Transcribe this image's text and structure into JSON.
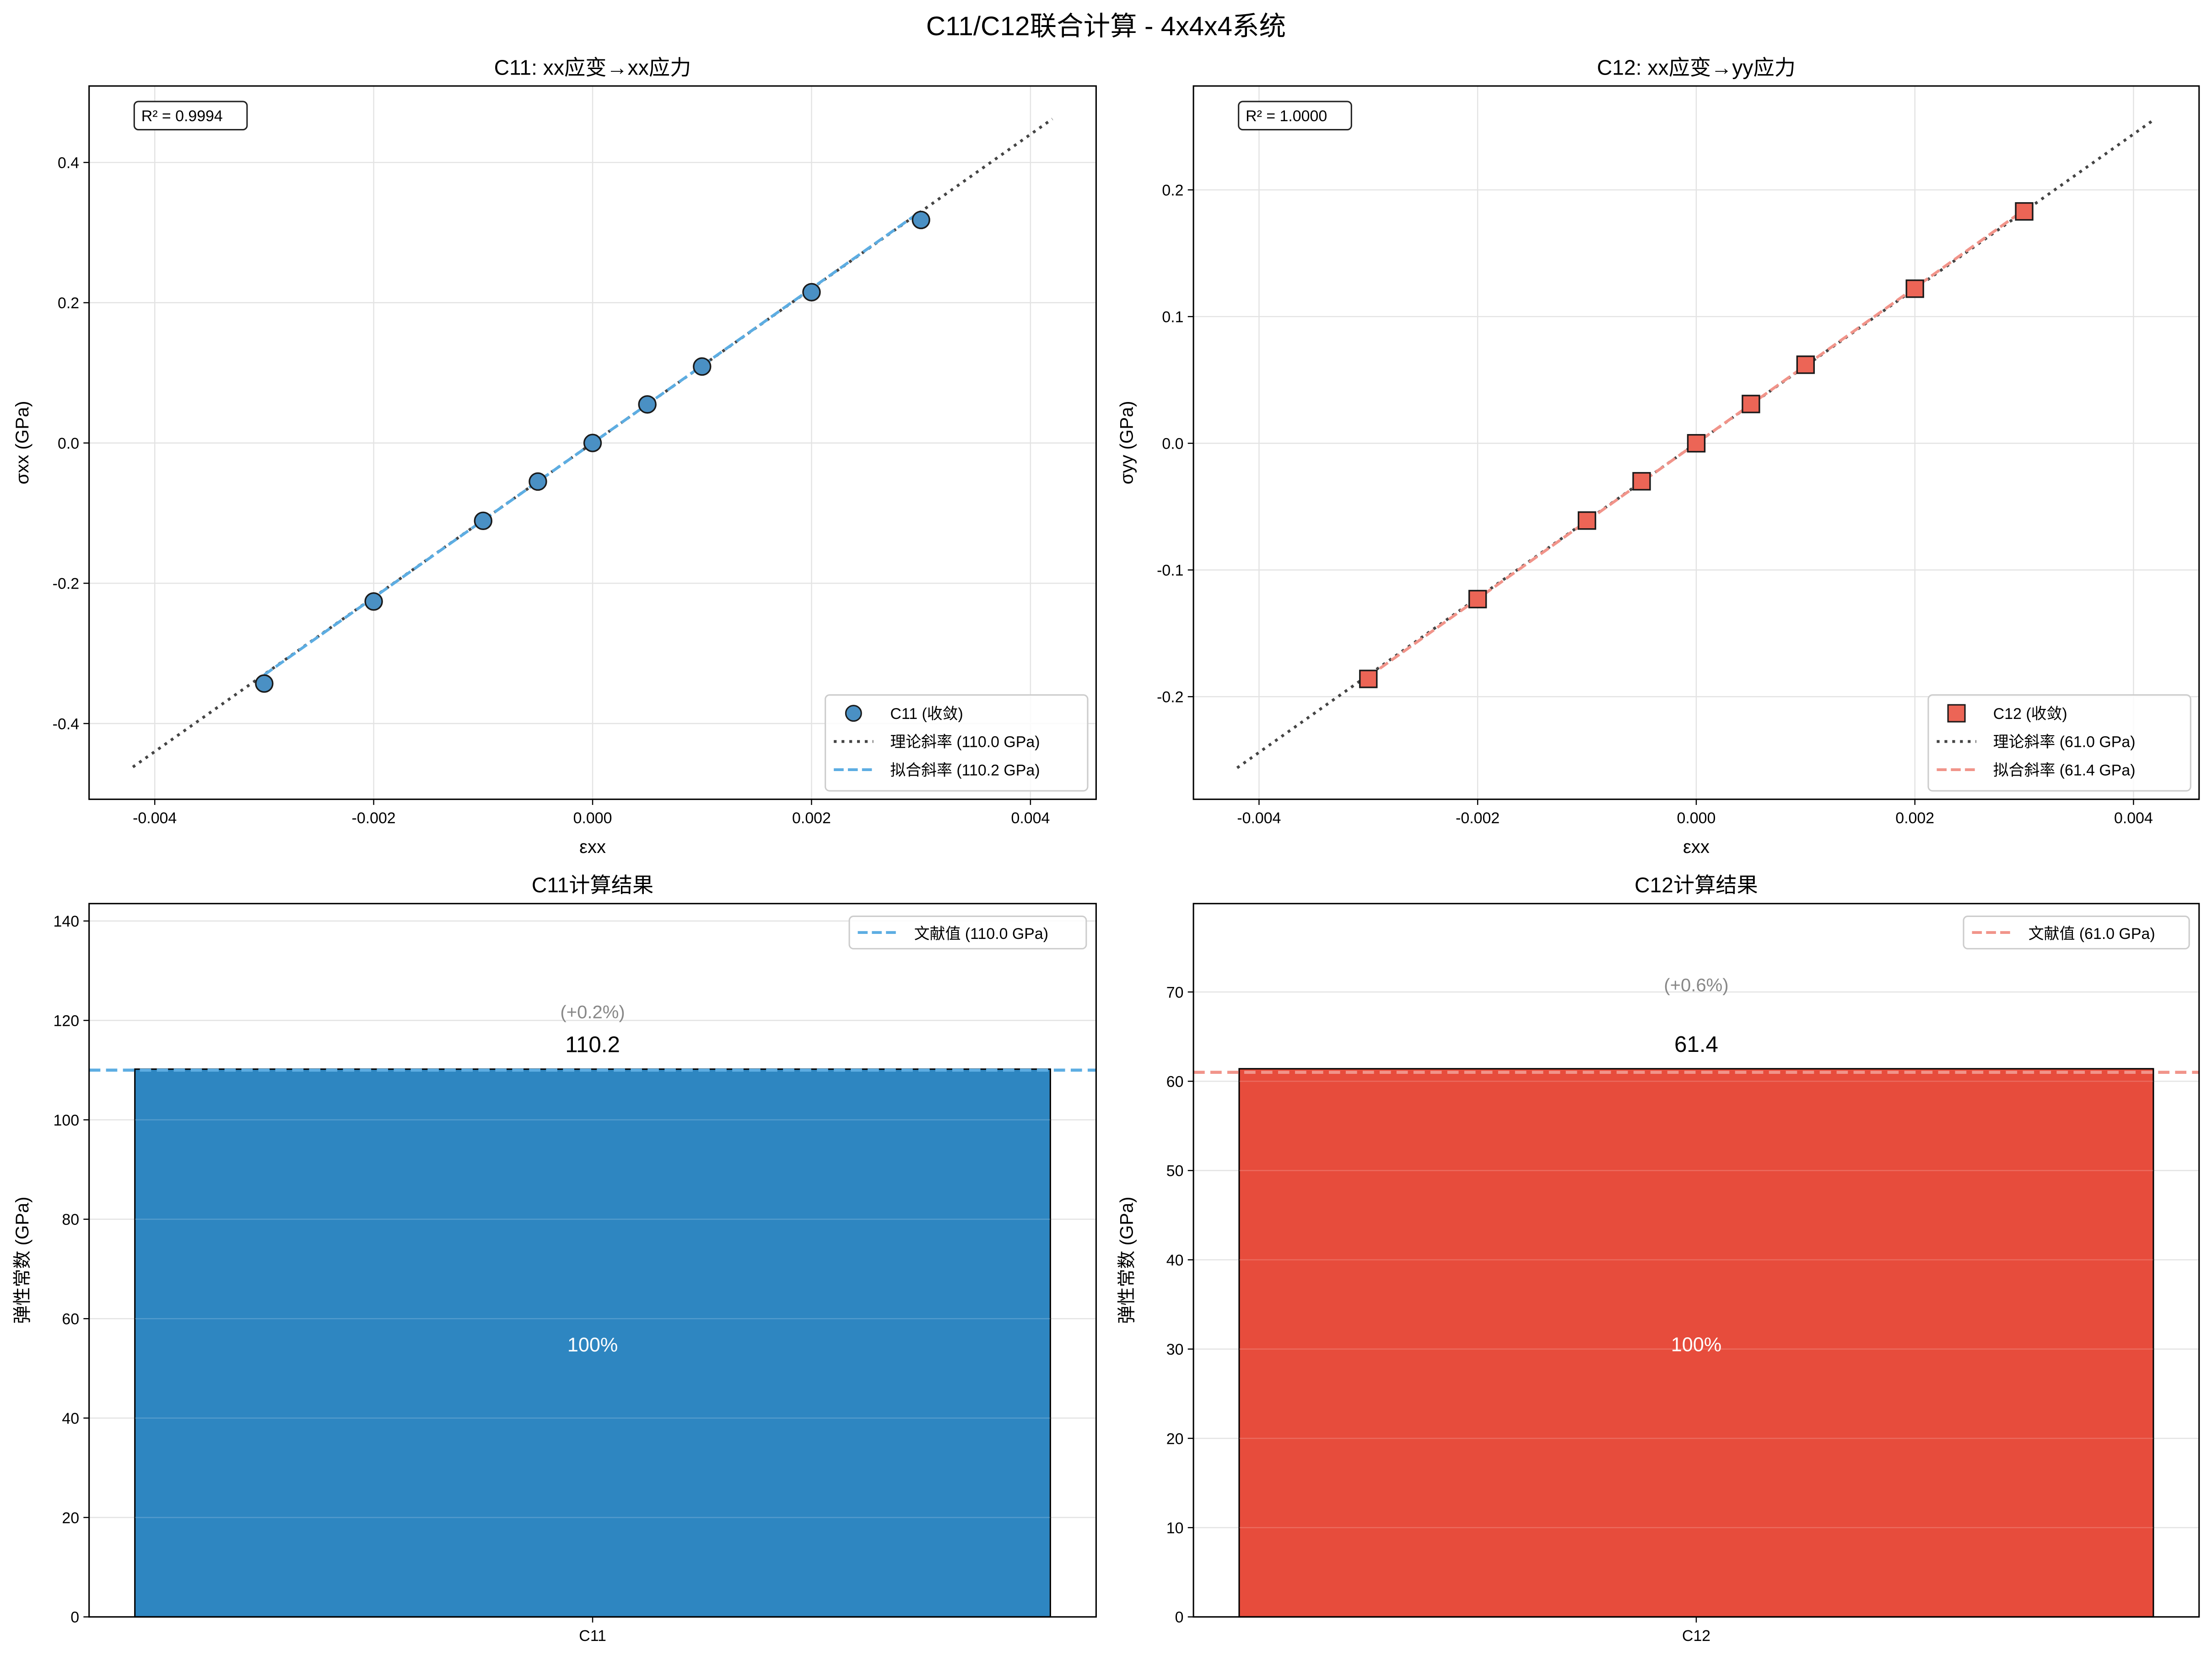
{
  "suptitle": "C11/C12联合计算 - 4x4x4系统",
  "chart_data": [
    {
      "type": "scatter",
      "title": "C11: xx应变→xx应力",
      "xlabel": "εxx",
      "ylabel": "σxx (GPa)",
      "xlim": [
        -0.0046,
        0.0046
      ],
      "ylim": [
        -0.508,
        0.509
      ],
      "xticks": [
        "-0.004",
        "-0.002",
        "0.000",
        "0.002",
        "0.004"
      ],
      "xtick_values": [
        -0.004,
        -0.002,
        0,
        0.002,
        0.004
      ],
      "yticks": [
        "-0.4",
        "-0.2",
        "0.0",
        "0.2",
        "0.4"
      ],
      "ytick_values": [
        -0.4,
        -0.2,
        0,
        0.2,
        0.4
      ],
      "grid": true,
      "annotation": "R² = 0.9994",
      "marker": "circle",
      "color": "#4A90C4",
      "fit_color": "#5DADE2",
      "x": [
        -0.003,
        -0.002,
        -0.001,
        -0.0005,
        0,
        0.0005,
        0.001,
        0.002,
        0.003
      ],
      "y": [
        -0.343,
        -0.226,
        -0.111,
        -0.055,
        0.0,
        0.055,
        0.109,
        0.215,
        0.318
      ],
      "theory_slope_gpa": 110.0,
      "fit_slope_gpa": 110.2,
      "legend_position": "lower right",
      "legend": [
        "C11 (收敛)",
        "理论斜率 (110.0 GPa)",
        "拟合斜率 (110.2 GPa)"
      ]
    },
    {
      "type": "scatter",
      "title": "C12: xx应变→yy应力",
      "xlabel": "εxx",
      "ylabel": "σyy (GPa)",
      "xlim": [
        -0.0046,
        0.0046
      ],
      "ylim": [
        -0.281,
        0.282
      ],
      "xticks": [
        "-0.004",
        "-0.002",
        "0.000",
        "0.002",
        "0.004"
      ],
      "xtick_values": [
        -0.004,
        -0.002,
        0,
        0.002,
        0.004
      ],
      "yticks": [
        "-0.2",
        "-0.1",
        "0.0",
        "0.1",
        "0.2"
      ],
      "ytick_values": [
        -0.2,
        -0.1,
        0,
        0.1,
        0.2
      ],
      "grid": true,
      "annotation": "R² = 1.0000",
      "marker": "square",
      "color": "#EC6556",
      "fit_color": "#F1948A",
      "x": [
        -0.003,
        -0.002,
        -0.001,
        -0.0005,
        0,
        0.0005,
        0.001,
        0.002,
        0.003
      ],
      "y": [
        -0.186,
        -0.123,
        -0.061,
        -0.03,
        0.0,
        0.031,
        0.062,
        0.122,
        0.183
      ],
      "theory_slope_gpa": 61.0,
      "fit_slope_gpa": 61.4,
      "legend_position": "lower right",
      "legend": [
        "C12 (收敛)",
        "理论斜率 (61.0 GPa)",
        "拟合斜率 (61.4 GPa)"
      ]
    },
    {
      "type": "bar",
      "title": "C11计算结果",
      "ylabel": "弹性常数 (GPa)",
      "categories": [
        "C11"
      ],
      "values": [
        110.2
      ],
      "value_label": "110.2",
      "deviation_label": "(+0.2%)",
      "inner_label": "100%",
      "reference": 110.0,
      "ylim": [
        0,
        143.5
      ],
      "yticks": [
        "0",
        "20",
        "40",
        "60",
        "80",
        "100",
        "120",
        "140"
      ],
      "ytick_values": [
        0,
        20,
        40,
        60,
        80,
        100,
        120,
        140
      ],
      "grid": true,
      "color": "#2E86C1",
      "ref_color": "#5DADE2",
      "legend_position": "upper right",
      "legend": [
        "文献值 (110.0 GPa)"
      ]
    },
    {
      "type": "bar",
      "title": "C12计算结果",
      "ylabel": "弹性常数 (GPa)",
      "categories": [
        "C12"
      ],
      "values": [
        61.4
      ],
      "value_label": "61.4",
      "deviation_label": "(+0.6%)",
      "inner_label": "100%",
      "reference": 61.0,
      "ylim": [
        0,
        79.9
      ],
      "yticks": [
        "0",
        "10",
        "20",
        "30",
        "40",
        "50",
        "60",
        "70"
      ],
      "ytick_values": [
        0,
        10,
        20,
        30,
        40,
        50,
        60,
        70
      ],
      "grid": true,
      "color": "#E74C3C",
      "ref_color": "#F1948A",
      "legend_position": "upper right",
      "legend": [
        "文献值 (61.0 GPa)"
      ]
    }
  ]
}
